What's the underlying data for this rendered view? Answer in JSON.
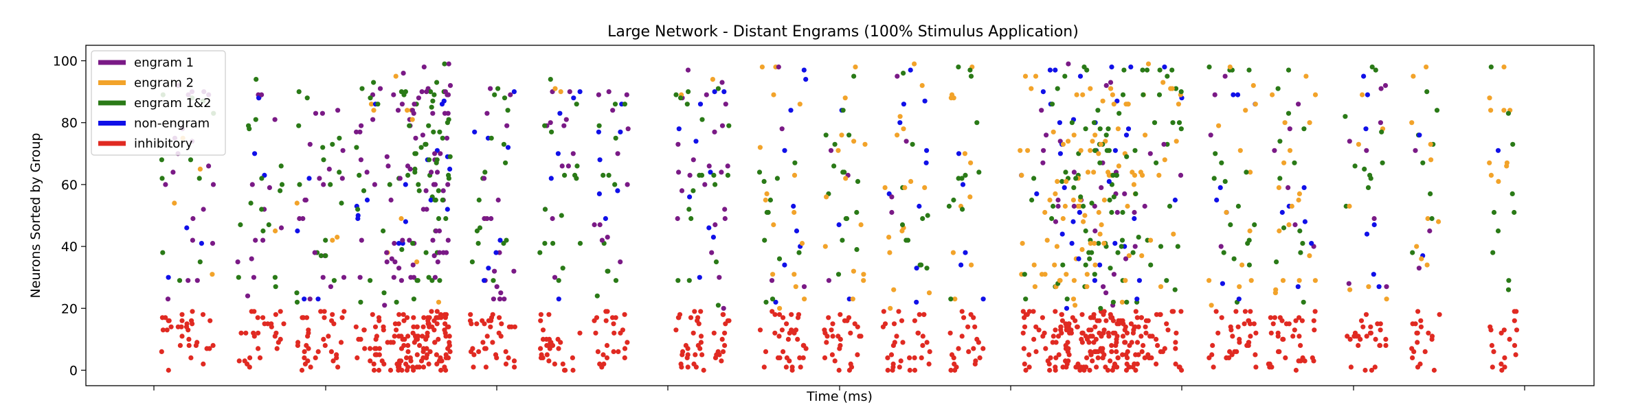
{
  "chart_data": {
    "type": "scatter",
    "title": "Large Network - Distant Engrams (100% Stimulus Application)",
    "xlabel": "Time (ms)",
    "ylabel": "Neurons Sorted by Group",
    "ylim": [
      -5,
      105
    ],
    "yticks": [
      0,
      20,
      40,
      60,
      80,
      100
    ],
    "xticks_labeled": false,
    "grid": false,
    "legend_position": "top-left",
    "groups": [
      {
        "name": "engram 1",
        "color": "#7a1a86",
        "y_range": [
          20,
          100
        ]
      },
      {
        "name": "engram 2",
        "color": "#f2a32a",
        "y_range": [
          20,
          100
        ]
      },
      {
        "name": "engram 1&2",
        "color": "#2a7a17",
        "y_range": [
          20,
          100
        ]
      },
      {
        "name": "non-engram",
        "color": "#1010e8",
        "y_range": [
          20,
          100
        ]
      },
      {
        "name": "inhibitory",
        "color": "#e02a22",
        "y_range": [
          0,
          20
        ]
      }
    ],
    "bursts": [
      {
        "start": 1.0,
        "end": 10.0,
        "phase": 1,
        "density": 1.0
      },
      {
        "start": 14,
        "end": 22,
        "phase": 1,
        "density": 1.0
      },
      {
        "start": 24,
        "end": 32,
        "phase": 1,
        "density": 1.3
      },
      {
        "start": 34,
        "end": 41,
        "phase": 1,
        "density": 1.5
      },
      {
        "start": 41,
        "end": 50,
        "phase": 1,
        "density": 3.4
      },
      {
        "start": 53,
        "end": 61,
        "phase": 1,
        "density": 1.3
      },
      {
        "start": 65,
        "end": 72,
        "phase": 1,
        "density": 1.2
      },
      {
        "start": 74,
        "end": 80,
        "phase": 1,
        "density": 1.2
      },
      {
        "start": 88,
        "end": 97,
        "phase": 1,
        "density": 1.4
      },
      {
        "start": 102,
        "end": 110,
        "phase": 2,
        "density": 1.2
      },
      {
        "start": 113,
        "end": 120,
        "phase": 2,
        "density": 1.2
      },
      {
        "start": 123,
        "end": 131,
        "phase": 2,
        "density": 1.2
      },
      {
        "start": 134,
        "end": 140,
        "phase": 2,
        "density": 1.1
      },
      {
        "start": 146,
        "end": 152,
        "phase": 2,
        "density": 1.3
      },
      {
        "start": 152,
        "end": 166,
        "phase": 2,
        "density": 3.2
      },
      {
        "start": 166,
        "end": 174,
        "phase": 2,
        "density": 1.4
      },
      {
        "start": 178,
        "end": 186,
        "phase": 2,
        "density": 1.3
      },
      {
        "start": 188,
        "end": 196,
        "phase": 2,
        "density": 1.3
      },
      {
        "start": 201,
        "end": 208,
        "phase": 2,
        "density": 1.1
      },
      {
        "start": 212,
        "end": 217,
        "phase": 2,
        "density": 1.1
      },
      {
        "start": 225,
        "end": 230,
        "phase": 2,
        "density": 1.0
      }
    ]
  }
}
